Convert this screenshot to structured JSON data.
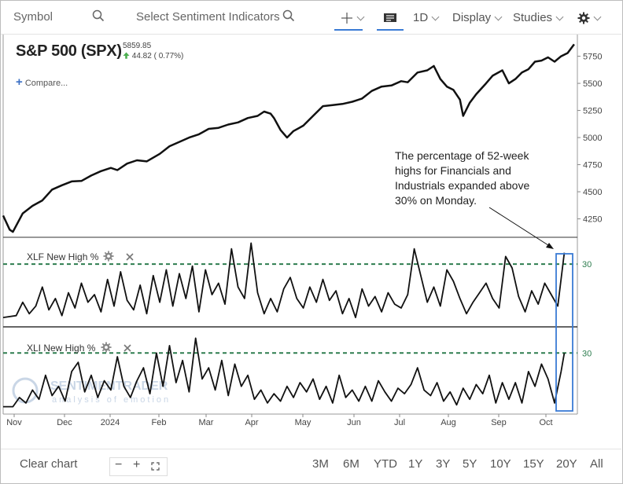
{
  "toolbar": {
    "symbol_placeholder": "Symbol",
    "sentiment_placeholder": "Select Sentiment Indicators",
    "interval_label": "1D",
    "display_label": "Display",
    "studies_label": "Studies"
  },
  "header": {
    "title": "S&P 500 (SPX)",
    "price": "5859.85",
    "change": "44.82 ( 0.77%)",
    "compare_label": "Compare..."
  },
  "panels": {
    "xlf_title": "XLF New High %",
    "xli_title": "XLI New High %",
    "threshold_label": "30"
  },
  "annotation": {
    "text": "The percentage of 52-week highs for Financials and Industrials expanded above 30% on Monday."
  },
  "watermark": {
    "brand": "SENTIMENTRADER",
    "tagline": "analysis of emotion"
  },
  "footer": {
    "clear_label": "Clear chart",
    "ranges": [
      "3M",
      "6M",
      "YTD",
      "1Y",
      "3Y",
      "5Y",
      "10Y",
      "15Y",
      "20Y",
      "All"
    ]
  },
  "colors": {
    "line": "#111111",
    "threshold": "#2e7d4f",
    "highlight_box": "#3a7bd5",
    "up_arrow": "#4caf50"
  },
  "icons": [
    "search-icon",
    "crosshair-icon",
    "chart-type-icon",
    "gear-icon",
    "close-icon",
    "plus-icon",
    "minus-icon",
    "fit-icon",
    "up-arrow-icon"
  ],
  "chart_data": {
    "type": "line",
    "x_tick_labels": [
      "Nov",
      "Dec",
      "2024",
      "Feb",
      "Mar",
      "Apr",
      "May",
      "Jun",
      "Jul",
      "Aug",
      "Sep",
      "Oct"
    ],
    "price_panel": {
      "series_name": "S&P 500 (SPX)",
      "y_ticks": [
        4250,
        4500,
        4750,
        5000,
        5250,
        5500,
        5750
      ],
      "ylim": [
        4080,
        5950
      ],
      "points": [
        [
          0,
          4280
        ],
        [
          2,
          4150
        ],
        [
          3,
          4130
        ],
        [
          6,
          4300
        ],
        [
          9,
          4370
        ],
        [
          12,
          4420
        ],
        [
          15,
          4520
        ],
        [
          18,
          4560
        ],
        [
          21,
          4595
        ],
        [
          24,
          4600
        ],
        [
          27,
          4650
        ],
        [
          30,
          4690
        ],
        [
          33,
          4720
        ],
        [
          35,
          4700
        ],
        [
          38,
          4760
        ],
        [
          41,
          4790
        ],
        [
          44,
          4780
        ],
        [
          48,
          4850
        ],
        [
          51,
          4920
        ],
        [
          54,
          4960
        ],
        [
          57,
          5000
        ],
        [
          60,
          5030
        ],
        [
          63,
          5080
        ],
        [
          66,
          5090
        ],
        [
          69,
          5120
        ],
        [
          72,
          5140
        ],
        [
          75,
          5180
        ],
        [
          78,
          5200
        ],
        [
          80,
          5240
        ],
        [
          82,
          5220
        ],
        [
          83,
          5180
        ],
        [
          85,
          5070
        ],
        [
          87,
          5000
        ],
        [
          89,
          5060
        ],
        [
          92,
          5110
        ],
        [
          95,
          5200
        ],
        [
          98,
          5290
        ],
        [
          101,
          5300
        ],
        [
          104,
          5310
        ],
        [
          107,
          5330
        ],
        [
          110,
          5360
        ],
        [
          113,
          5430
        ],
        [
          116,
          5470
        ],
        [
          119,
          5480
        ],
        [
          122,
          5520
        ],
        [
          124,
          5510
        ],
        [
          127,
          5600
        ],
        [
          130,
          5620
        ],
        [
          132,
          5660
        ],
        [
          134,
          5540
        ],
        [
          136,
          5470
        ],
        [
          138,
          5440
        ],
        [
          140,
          5350
        ],
        [
          141,
          5200
        ],
        [
          143,
          5320
        ],
        [
          145,
          5400
        ],
        [
          148,
          5500
        ],
        [
          150,
          5570
        ],
        [
          153,
          5620
        ],
        [
          155,
          5500
        ],
        [
          157,
          5540
        ],
        [
          159,
          5600
        ],
        [
          161,
          5630
        ],
        [
          163,
          5700
        ],
        [
          165,
          5710
        ],
        [
          167,
          5740
        ],
        [
          169,
          5700
        ],
        [
          171,
          5750
        ],
        [
          173,
          5780
        ],
        [
          175,
          5860
        ]
      ]
    },
    "xlf_new_high_pct": {
      "series_name": "XLF New High %",
      "threshold": 30,
      "ylim": [
        0,
        42
      ],
      "points": [
        [
          0,
          2
        ],
        [
          4,
          3
        ],
        [
          6,
          10
        ],
        [
          8,
          4
        ],
        [
          10,
          8
        ],
        [
          12,
          18
        ],
        [
          14,
          6
        ],
        [
          16,
          12
        ],
        [
          18,
          3
        ],
        [
          20,
          15
        ],
        [
          22,
          7
        ],
        [
          24,
          20
        ],
        [
          26,
          10
        ],
        [
          28,
          14
        ],
        [
          30,
          5
        ],
        [
          32,
          22
        ],
        [
          34,
          8
        ],
        [
          36,
          26
        ],
        [
          38,
          11
        ],
        [
          40,
          6
        ],
        [
          42,
          19
        ],
        [
          44,
          4
        ],
        [
          46,
          24
        ],
        [
          48,
          10
        ],
        [
          50,
          27
        ],
        [
          52,
          8
        ],
        [
          54,
          25
        ],
        [
          56,
          12
        ],
        [
          58,
          29
        ],
        [
          60,
          5
        ],
        [
          62,
          27
        ],
        [
          64,
          14
        ],
        [
          66,
          20
        ],
        [
          68,
          9
        ],
        [
          70,
          38
        ],
        [
          72,
          18
        ],
        [
          74,
          12
        ],
        [
          76,
          41
        ],
        [
          78,
          15
        ],
        [
          80,
          4
        ],
        [
          82,
          12
        ],
        [
          84,
          5
        ],
        [
          86,
          17
        ],
        [
          88,
          23
        ],
        [
          90,
          12
        ],
        [
          92,
          7
        ],
        [
          94,
          18
        ],
        [
          96,
          10
        ],
        [
          98,
          22
        ],
        [
          100,
          11
        ],
        [
          102,
          16
        ],
        [
          104,
          4
        ],
        [
          106,
          12
        ],
        [
          108,
          2
        ],
        [
          110,
          17
        ],
        [
          112,
          8
        ],
        [
          114,
          13
        ],
        [
          116,
          5
        ],
        [
          118,
          15
        ],
        [
          120,
          9
        ],
        [
          122,
          7
        ],
        [
          124,
          14
        ],
        [
          126,
          38
        ],
        [
          128,
          24
        ],
        [
          130,
          10
        ],
        [
          132,
          18
        ],
        [
          134,
          8
        ],
        [
          136,
          27
        ],
        [
          138,
          21
        ],
        [
          140,
          12
        ],
        [
          142,
          4
        ],
        [
          144,
          10
        ],
        [
          146,
          15
        ],
        [
          148,
          20
        ],
        [
          150,
          12
        ],
        [
          152,
          7
        ],
        [
          154,
          34
        ],
        [
          156,
          28
        ],
        [
          158,
          13
        ],
        [
          160,
          5
        ],
        [
          162,
          16
        ],
        [
          164,
          9
        ],
        [
          166,
          20
        ],
        [
          168,
          14
        ],
        [
          170,
          8
        ],
        [
          172,
          36
        ]
      ]
    },
    "xli_new_high_pct": {
      "series_name": "XLI New High %",
      "threshold": 30,
      "ylim": [
        0,
        42
      ],
      "points": [
        [
          0,
          1
        ],
        [
          3,
          1
        ],
        [
          5,
          6
        ],
        [
          7,
          3
        ],
        [
          9,
          10
        ],
        [
          11,
          5
        ],
        [
          13,
          18
        ],
        [
          15,
          7
        ],
        [
          17,
          12
        ],
        [
          19,
          4
        ],
        [
          21,
          20
        ],
        [
          23,
          25
        ],
        [
          25,
          9
        ],
        [
          27,
          18
        ],
        [
          29,
          6
        ],
        [
          31,
          15
        ],
        [
          33,
          10
        ],
        [
          35,
          28
        ],
        [
          37,
          12
        ],
        [
          39,
          6
        ],
        [
          41,
          15
        ],
        [
          43,
          22
        ],
        [
          45,
          8
        ],
        [
          47,
          30
        ],
        [
          49,
          12
        ],
        [
          51,
          34
        ],
        [
          53,
          14
        ],
        [
          55,
          26
        ],
        [
          57,
          9
        ],
        [
          59,
          38
        ],
        [
          61,
          16
        ],
        [
          63,
          22
        ],
        [
          65,
          10
        ],
        [
          67,
          26
        ],
        [
          69,
          7
        ],
        [
          71,
          24
        ],
        [
          73,
          12
        ],
        [
          75,
          18
        ],
        [
          77,
          5
        ],
        [
          79,
          10
        ],
        [
          81,
          3
        ],
        [
          83,
          8
        ],
        [
          85,
          4
        ],
        [
          87,
          12
        ],
        [
          89,
          6
        ],
        [
          91,
          14
        ],
        [
          93,
          9
        ],
        [
          95,
          16
        ],
        [
          97,
          5
        ],
        [
          99,
          12
        ],
        [
          101,
          3
        ],
        [
          103,
          18
        ],
        [
          105,
          6
        ],
        [
          107,
          10
        ],
        [
          109,
          4
        ],
        [
          111,
          12
        ],
        [
          113,
          4
        ],
        [
          115,
          15
        ],
        [
          117,
          9
        ],
        [
          119,
          4
        ],
        [
          121,
          11
        ],
        [
          123,
          8
        ],
        [
          125,
          13
        ],
        [
          127,
          22
        ],
        [
          129,
          10
        ],
        [
          131,
          7
        ],
        [
          133,
          14
        ],
        [
          135,
          4
        ],
        [
          137,
          9
        ],
        [
          139,
          2
        ],
        [
          141,
          11
        ],
        [
          143,
          5
        ],
        [
          145,
          13
        ],
        [
          147,
          8
        ],
        [
          149,
          18
        ],
        [
          151,
          3
        ],
        [
          153,
          14
        ],
        [
          155,
          5
        ],
        [
          157,
          14
        ],
        [
          159,
          3
        ],
        [
          161,
          20
        ],
        [
          163,
          12
        ],
        [
          165,
          24
        ],
        [
          167,
          16
        ],
        [
          169,
          3
        ],
        [
          171,
          20
        ],
        [
          172,
          30
        ]
      ]
    }
  }
}
